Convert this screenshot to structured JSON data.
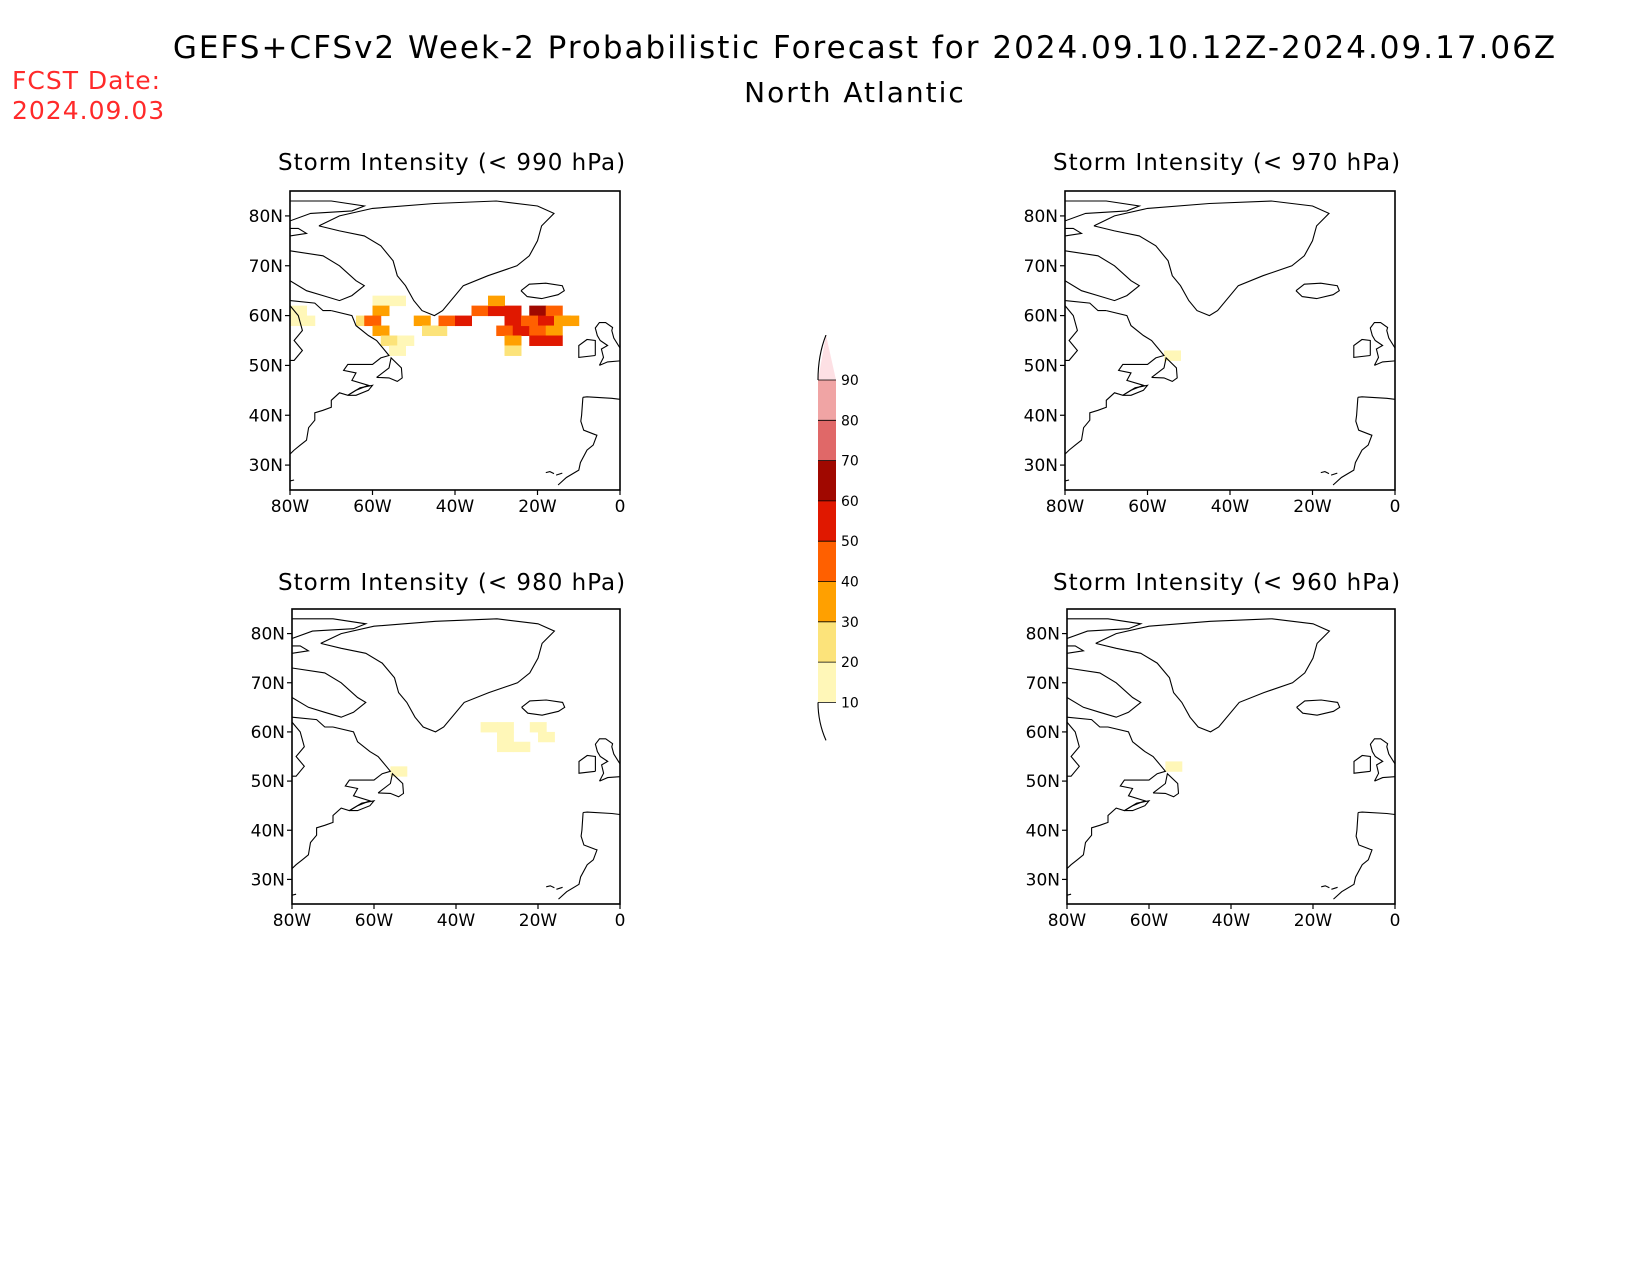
{
  "header": {
    "title": "GEFS+CFSv2 Week-2 Probabilistic Forecast for 2024.09.10.12Z-2024.09.17.06Z",
    "region": "North Atlantic",
    "fcst_label": "FCST Date:",
    "fcst_date": "2024.09.03"
  },
  "colors": {
    "fcst_text": "#ff2a2a",
    "levels": [
      "#fff7b8",
      "#fce37a",
      "#ffa000",
      "#ff6000",
      "#e01800",
      "#a00800",
      "#e06868",
      "#f0a4a4",
      "#fde0e4"
    ]
  },
  "axes": {
    "lat_ticks": [
      "80N",
      "70N",
      "60N",
      "50N",
      "40N",
      "30N"
    ],
    "lon_ticks": [
      "80W",
      "60W",
      "40W",
      "20W",
      "0"
    ]
  },
  "colorbar": {
    "labels": [
      "10",
      "20",
      "30",
      "40",
      "50",
      "60",
      "70",
      "80",
      "90"
    ]
  },
  "panels": [
    {
      "title": "Storm Intensity (< 990 hPa)",
      "cells": [
        {
          "lon": -78,
          "lat": 61,
          "level": 0
        },
        {
          "lon": -76,
          "lat": 59,
          "level": 0
        },
        {
          "lon": -80,
          "lat": 59,
          "level": 0
        },
        {
          "lon": -62,
          "lat": 59,
          "level": 1
        },
        {
          "lon": -58,
          "lat": 63,
          "level": 0
        },
        {
          "lon": -54,
          "lat": 63,
          "level": 0
        },
        {
          "lon": -58,
          "lat": 61,
          "level": 2
        },
        {
          "lon": -60,
          "lat": 59,
          "level": 3
        },
        {
          "lon": -58,
          "lat": 57,
          "level": 2
        },
        {
          "lon": -56,
          "lat": 55,
          "level": 1
        },
        {
          "lon": -54,
          "lat": 53,
          "level": 0
        },
        {
          "lon": -52,
          "lat": 55,
          "level": 0
        },
        {
          "lon": -48,
          "lat": 59,
          "level": 2
        },
        {
          "lon": -46,
          "lat": 57,
          "level": 1
        },
        {
          "lon": -44,
          "lat": 57,
          "level": 1
        },
        {
          "lon": -42,
          "lat": 59,
          "level": 3
        },
        {
          "lon": -38,
          "lat": 59,
          "level": 4
        },
        {
          "lon": -34,
          "lat": 61,
          "level": 3
        },
        {
          "lon": -30,
          "lat": 61,
          "level": 4
        },
        {
          "lon": -30,
          "lat": 63,
          "level": 2
        },
        {
          "lon": -26,
          "lat": 61,
          "level": 4
        },
        {
          "lon": -26,
          "lat": 59,
          "level": 4
        },
        {
          "lon": -28,
          "lat": 57,
          "level": 3
        },
        {
          "lon": -24,
          "lat": 57,
          "level": 4
        },
        {
          "lon": -26,
          "lat": 55,
          "level": 2
        },
        {
          "lon": -26,
          "lat": 53,
          "level": 1
        },
        {
          "lon": -20,
          "lat": 61,
          "level": 5
        },
        {
          "lon": -18,
          "lat": 59,
          "level": 4
        },
        {
          "lon": -22,
          "lat": 59,
          "level": 3
        },
        {
          "lon": -16,
          "lat": 61,
          "level": 3
        },
        {
          "lon": -14,
          "lat": 59,
          "level": 2
        },
        {
          "lon": -20,
          "lat": 57,
          "level": 3
        },
        {
          "lon": -16,
          "lat": 57,
          "level": 2
        },
        {
          "lon": -20,
          "lat": 55,
          "level": 4
        },
        {
          "lon": -16,
          "lat": 55,
          "level": 4
        },
        {
          "lon": -12,
          "lat": 59,
          "level": 2
        }
      ]
    },
    {
      "title": "Storm Intensity (< 970 hPa)",
      "cells": [
        {
          "lon": -54,
          "lat": 52,
          "level": 0
        }
      ]
    },
    {
      "title": "Storm Intensity (< 980 hPa)",
      "cells": [
        {
          "lon": -54,
          "lat": 52,
          "level": 0
        },
        {
          "lon": -32,
          "lat": 61,
          "level": 0
        },
        {
          "lon": -28,
          "lat": 61,
          "level": 0
        },
        {
          "lon": -28,
          "lat": 59,
          "level": 0
        },
        {
          "lon": -28,
          "lat": 57,
          "level": 0
        },
        {
          "lon": -24,
          "lat": 57,
          "level": 0
        },
        {
          "lon": -20,
          "lat": 61,
          "level": 0
        },
        {
          "lon": -18,
          "lat": 59,
          "level": 0
        }
      ]
    },
    {
      "title": "Storm Intensity (< 960 hPa)",
      "cells": [
        {
          "lon": -54,
          "lat": 53,
          "level": 0
        }
      ]
    }
  ]
}
